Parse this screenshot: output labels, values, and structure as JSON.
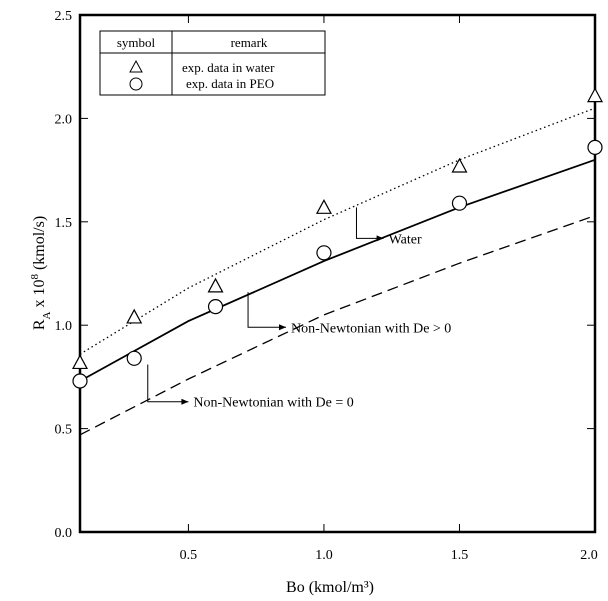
{
  "chart_data": {
    "type": "line",
    "xlabel": "Bo (kmol/m³)",
    "ylabel": "R_A x 10^8 (kmol/s)",
    "xlim": [
      0.1,
      2.0
    ],
    "ylim": [
      0.0,
      2.5
    ],
    "xticks": [
      "0.5",
      "1.0",
      "1.5",
      "2.0"
    ],
    "yticks": [
      "0.0",
      "0.5",
      "1.0",
      "1.5",
      "2.0",
      "2.5"
    ],
    "grid": false,
    "legend": {
      "placement": "top-left",
      "header_symbol": "symbol",
      "header_remark": "remark",
      "entries": [
        {
          "symbol": "triangle",
          "label": "exp. data in water"
        },
        {
          "symbol": "circle",
          "label": "exp. data in PEO"
        }
      ]
    },
    "series": [
      {
        "style": "dotted",
        "x": [
          0.1,
          0.5,
          1.0,
          1.5,
          2.0
        ],
        "y": [
          0.86,
          1.18,
          1.51,
          1.8,
          2.05
        ]
      },
      {
        "style": "solid",
        "x": [
          0.1,
          0.5,
          1.0,
          1.5,
          2.0
        ],
        "y": [
          0.73,
          1.02,
          1.31,
          1.57,
          1.8
        ]
      },
      {
        "style": "dashed",
        "x": [
          0.1,
          0.5,
          1.0,
          1.5,
          2.0
        ],
        "y": [
          0.47,
          0.74,
          1.05,
          1.3,
          1.53
        ]
      },
      {
        "name": "exp. data in water",
        "marker": "triangle",
        "x": [
          0.1,
          0.3,
          0.6,
          1.0,
          1.5,
          2.0
        ],
        "y": [
          0.82,
          1.04,
          1.19,
          1.57,
          1.77,
          2.11
        ]
      },
      {
        "name": "exp. data in PEO",
        "marker": "circle",
        "x": [
          0.1,
          0.3,
          0.6,
          1.0,
          1.5,
          2.0
        ],
        "y": [
          0.73,
          0.84,
          1.09,
          1.35,
          1.59,
          1.86
        ]
      }
    ],
    "annotations": [
      {
        "text": "Water",
        "arrow_from": [
          1.12,
          1.57
        ],
        "line_to": [
          1.12,
          1.42
        ],
        "arrow_to": [
          1.22,
          1.42
        ]
      },
      {
        "text": "Non-Newtonian with De > 0",
        "arrow_from": [
          0.72,
          1.16
        ],
        "line_to": [
          0.72,
          0.99
        ],
        "arrow_to": [
          0.86,
          0.99
        ]
      },
      {
        "text": "Non-Newtonian with De = 0",
        "arrow_from": [
          0.35,
          0.81
        ],
        "line_to": [
          0.35,
          0.63
        ],
        "arrow_to": [
          0.5,
          0.63
        ]
      }
    ]
  }
}
